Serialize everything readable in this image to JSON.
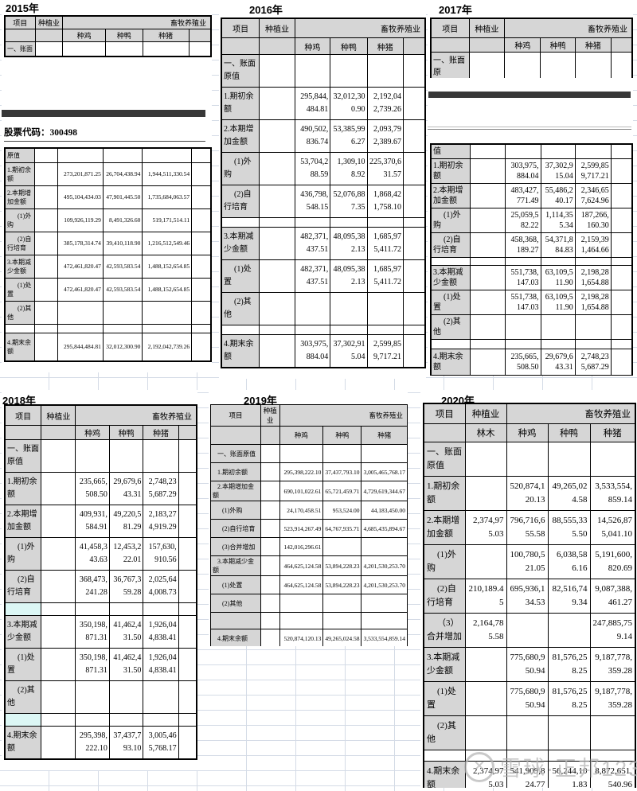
{
  "stock_code_label": "股票代码：300498",
  "watermark": {
    "logo": "xueqiu-snowball-logo",
    "text": "雪球·正邦123"
  },
  "years": {
    "y2015": {
      "title": "2015年",
      "header": {
        "item": "项目",
        "planting": "种植业",
        "livestock": "畜牧养殖业"
      },
      "sub_headers": [
        "种鸡",
        "种鸭",
        "种猪"
      ],
      "top_rows": [
        {
          "label": "一、账面",
          "values": [
            "",
            "",
            "",
            ""
          ]
        }
      ],
      "rows": [
        {
          "label": "原值",
          "values": [
            "",
            "",
            "",
            ""
          ]
        },
        {
          "label": "1.期初余额",
          "values": [
            "",
            "273,201,871.25",
            "26,704,438.94",
            "1,944,511,330.54"
          ]
        },
        {
          "label": "2.本期增加金额",
          "values": [
            "",
            "495,104,434.03",
            "47,901,445.50",
            "1,735,684,063.57"
          ]
        },
        {
          "label": "(1)外购",
          "values": [
            "",
            "109,926,119.29",
            "8,491,326.60",
            "519,171,514.11"
          ]
        },
        {
          "label": "(2)自行培育",
          "values": [
            "",
            "385,178,314.74",
            "39,410,118.90",
            "1,216,512,549.46"
          ]
        },
        {
          "label": "3.本期减少金额",
          "values": [
            "",
            "472,461,820.47",
            "42,593,583.54",
            "1,488,152,654.85"
          ]
        },
        {
          "label": "(1)处置",
          "values": [
            "",
            "472,461,820.47",
            "42,593,583.54",
            "1,488,152,654.85"
          ]
        },
        {
          "label": "(2)其他",
          "values": [
            "",
            "",
            "",
            ""
          ]
        },
        {
          "label": "",
          "type": "sp",
          "values": [
            "",
            "",
            "",
            ""
          ]
        },
        {
          "label": "4.期末余额",
          "values": [
            "",
            "295,844,484.81",
            "32,012,300.90",
            "2,192,042,739.26"
          ]
        }
      ]
    },
    "y2016": {
      "title": "2016年",
      "header": {
        "item": "项目",
        "planting": "种植业",
        "livestock": "畜牧养殖业"
      },
      "sub_headers": [
        "种鸡",
        "种鸭",
        "种猪"
      ],
      "rows": [
        {
          "label": "一、账面原值",
          "values": [
            "",
            "",
            "",
            ""
          ]
        },
        {
          "label": "1.期初余额",
          "values": [
            "",
            "295,844,484.81",
            "32,012,300.90",
            "2,192,042,739.26"
          ]
        },
        {
          "label": "2.本期增加金额",
          "values": [
            "",
            "490,502,836.74",
            "53,385,996.27",
            "2,093,792,389.67"
          ]
        },
        {
          "label": "(1)外购",
          "values": [
            "",
            "53,704,288.59",
            "1,309,108.92",
            "225,370,631.57"
          ]
        },
        {
          "label": "(2)自行培育",
          "values": [
            "",
            "436,798,548.15",
            "52,076,887.35",
            "1,868,421,758.10"
          ]
        },
        {
          "label": "",
          "type": "sp",
          "values": [
            "",
            "",
            "",
            ""
          ]
        },
        {
          "label": "3.本期减少金额",
          "values": [
            "",
            "482,371,437.51",
            "48,095,382.13",
            "1,685,975,411.72"
          ]
        },
        {
          "label": "(1)处置",
          "values": [
            "",
            "482,371,437.51",
            "48,095,382.13",
            "1,685,975,411.72"
          ]
        },
        {
          "label": "(2)其他",
          "values": [
            "",
            "",
            "",
            ""
          ]
        },
        {
          "label": "",
          "type": "sp",
          "values": [
            "",
            "",
            "",
            ""
          ]
        },
        {
          "label": "4.期末余额",
          "values": [
            "",
            "303,975,884.04",
            "37,302,915.04",
            "2,599,859,717.21"
          ]
        }
      ]
    },
    "y2017": {
      "title": "2017年",
      "header": {
        "item": "项目",
        "planting": "种植业",
        "livestock": "畜牧养殖业"
      },
      "sub_headers": [
        "种鸡",
        "种鸭",
        "种猪"
      ],
      "top_rows": [
        {
          "label": "一、账面原",
          "values": [
            "",
            "",
            "",
            ""
          ]
        }
      ],
      "rows": [
        {
          "label": "值",
          "values": [
            "",
            "",
            "",
            ""
          ]
        },
        {
          "label": "1.期初余额",
          "values": [
            "",
            "303,975,884.04",
            "37,302,915.04",
            "2,599,859,717.21"
          ]
        },
        {
          "label": "2.本期增加金额",
          "values": [
            "",
            "483,427,771.49",
            "55,486,240.17",
            "2,346,657,624.96"
          ]
        },
        {
          "label": "(1)外购",
          "values": [
            "",
            "25,059,582.22",
            "1,114,355.34",
            "187,266,160.30"
          ]
        },
        {
          "label": "(2)自行培育",
          "values": [
            "",
            "458,368,189.27",
            "54,371,884.83",
            "2,159,391,464.66"
          ]
        },
        {
          "label": "",
          "type": "sp",
          "values": [
            "",
            "",
            "",
            ""
          ]
        },
        {
          "label": "3.本期减少金额",
          "values": [
            "",
            "551,738,147.03",
            "63,109,511.90",
            "2,198,281,654.88"
          ]
        },
        {
          "label": "(1)处置",
          "values": [
            "",
            "551,738,147.03",
            "63,109,511.90",
            "2,198,281,654.88"
          ]
        },
        {
          "label": "(2)其他",
          "values": [
            "",
            "",
            "",
            ""
          ]
        },
        {
          "label": "",
          "type": "sp",
          "values": [
            "",
            "",
            "",
            ""
          ]
        },
        {
          "label": "4.期末余额",
          "values": [
            "",
            "235,665,508.50",
            "29,679,643.31",
            "2,748,235,687.29"
          ]
        }
      ]
    },
    "y2018": {
      "title": "2018年",
      "header": {
        "item": "项目",
        "planting": "种植业",
        "livestock": "畜牧养殖业"
      },
      "sub_headers": [
        "种鸡",
        "种鸭",
        "种猪"
      ],
      "rows": [
        {
          "label": "一、账面原值",
          "values": [
            "",
            "",
            "",
            ""
          ]
        },
        {
          "label": "1.期初余额",
          "values": [
            "",
            "235,665,508.50",
            "29,679,643.31",
            "2,748,235,687.29"
          ]
        },
        {
          "label": "2.本期增加金额",
          "values": [
            "",
            "409,931,584.91",
            "49,220,581.29",
            "2,183,274,919.29"
          ]
        },
        {
          "label": "(1)外购",
          "values": [
            "",
            "41,458,343.63",
            "12,453,222.01",
            "157,630,910.56"
          ]
        },
        {
          "label": "(2)自行培育",
          "values": [
            "",
            "368,473,241.28",
            "36,767,359.28",
            "2,025,644,008.73"
          ]
        },
        {
          "label": "",
          "type": "sp cyan",
          "values": [
            "",
            "",
            "",
            ""
          ]
        },
        {
          "label": "3.本期减少金额",
          "values": [
            "",
            "350,198,871.31",
            "41,462,431.50",
            "1,926,044,838.41"
          ]
        },
        {
          "label": "(1)处置",
          "values": [
            "",
            "350,198,871.31",
            "41,462,431.50",
            "1,926,044,838.41"
          ]
        },
        {
          "label": "(2)其他",
          "values": [
            "",
            "",
            "",
            ""
          ]
        },
        {
          "label": "",
          "type": "sp cyan",
          "values": [
            "",
            "",
            "",
            ""
          ]
        },
        {
          "label": "4.期末余额",
          "values": [
            "",
            "295,398,222.10",
            "37,437,793.10",
            "3,005,465,768.17"
          ]
        }
      ]
    },
    "y2019": {
      "title": "2019年",
      "header": {
        "item": "项目",
        "planting": "种植业",
        "livestock": "畜牧养殖业"
      },
      "sub_headers": [
        "种鸡",
        "种鸭",
        "种猪"
      ],
      "rows": [
        {
          "label": "一、账面原值",
          "values": [
            "",
            "",
            "",
            ""
          ]
        },
        {
          "label": "1.期初余额",
          "values": [
            "",
            "295,398,222.10",
            "37,437,793.10",
            "3,005,465,768.17"
          ]
        },
        {
          "label": "2.本期增加金额",
          "values": [
            "",
            "690,101,022.61",
            "65,721,459.71",
            "4,729,619,344.67"
          ]
        },
        {
          "label": "(1)外购",
          "values": [
            "",
            "24,170,458.51",
            "953,524.00",
            "44,183,450.00"
          ]
        },
        {
          "label": "(2)自行培育",
          "values": [
            "",
            "523,914,267.49",
            "64,767,935.71",
            "4,685,435,894.67"
          ]
        },
        {
          "label": "(3)合并增加",
          "values": [
            "",
            "142,016,296.61",
            "",
            ""
          ]
        },
        {
          "label": "3.本期减少金额",
          "values": [
            "",
            "464,625,124.58",
            "53,894,228.23",
            "4,201,530,253.70"
          ]
        },
        {
          "label": "(1)处置",
          "values": [
            "",
            "464,625,124.58",
            "53,894,228.23",
            "4,201,530,253.70"
          ]
        },
        {
          "label": "(2)其他",
          "values": [
            "",
            "",
            "",
            ""
          ]
        },
        {
          "label": "",
          "type": "sp gray",
          "values": [
            "",
            "",
            "",
            ""
          ]
        },
        {
          "label": "4.期末余额",
          "values": [
            "",
            "520,874,120.13",
            "49,265,024.58",
            "3,533,554,859.14"
          ]
        }
      ]
    },
    "y2020": {
      "title": "2020年",
      "header": {
        "item": "项目",
        "planting": "种植业",
        "livestock": "畜牧养殖业"
      },
      "sub_headers": [
        "林木",
        "种鸡",
        "种鸭",
        "种猪"
      ],
      "rows": [
        {
          "label": "一、账面原值",
          "values": [
            "",
            "",
            "",
            ""
          ]
        },
        {
          "label": "1.期初余额",
          "values": [
            "",
            "520,874,120.13",
            "49,265,024.58",
            "3,533,554,859.14"
          ]
        },
        {
          "label": "2.本期增加金额",
          "values": [
            "2,374,975.03",
            "796,716,655.58",
            "88,555,335.50",
            "14,526,875,041.10"
          ]
        },
        {
          "label": "(1)外购",
          "values": [
            "",
            "100,780,521.05",
            "6,038,586.16",
            "5,191,600,820.69"
          ]
        },
        {
          "label": "(2)自行培育",
          "values": [
            "210,189.45",
            "695,936,134.53",
            "82,516,749.34",
            "9,087,388,461.27"
          ]
        },
        {
          "label": "（3）合并增加",
          "values": [
            "2,164,785.58",
            "",
            "",
            "247,885,759.14"
          ]
        },
        {
          "label": "3.本期减少金额",
          "values": [
            "",
            "775,680,950.94",
            "81,576,258.25",
            "9,187,778,359.28"
          ]
        },
        {
          "label": "(1)处置",
          "values": [
            "",
            "775,680,950.94",
            "81,576,258.25",
            "9,187,778,359.28"
          ]
        },
        {
          "label": "(2)其他",
          "values": [
            "",
            "",
            "",
            ""
          ]
        },
        {
          "label": "",
          "type": "sp",
          "values": [
            "",
            "",
            "",
            ""
          ]
        },
        {
          "label": "4.期末余额",
          "values": [
            "2,374,975.03",
            "541,909,824.77",
            "56,244,101.83",
            "8,872,651,540.96"
          ]
        }
      ]
    }
  }
}
